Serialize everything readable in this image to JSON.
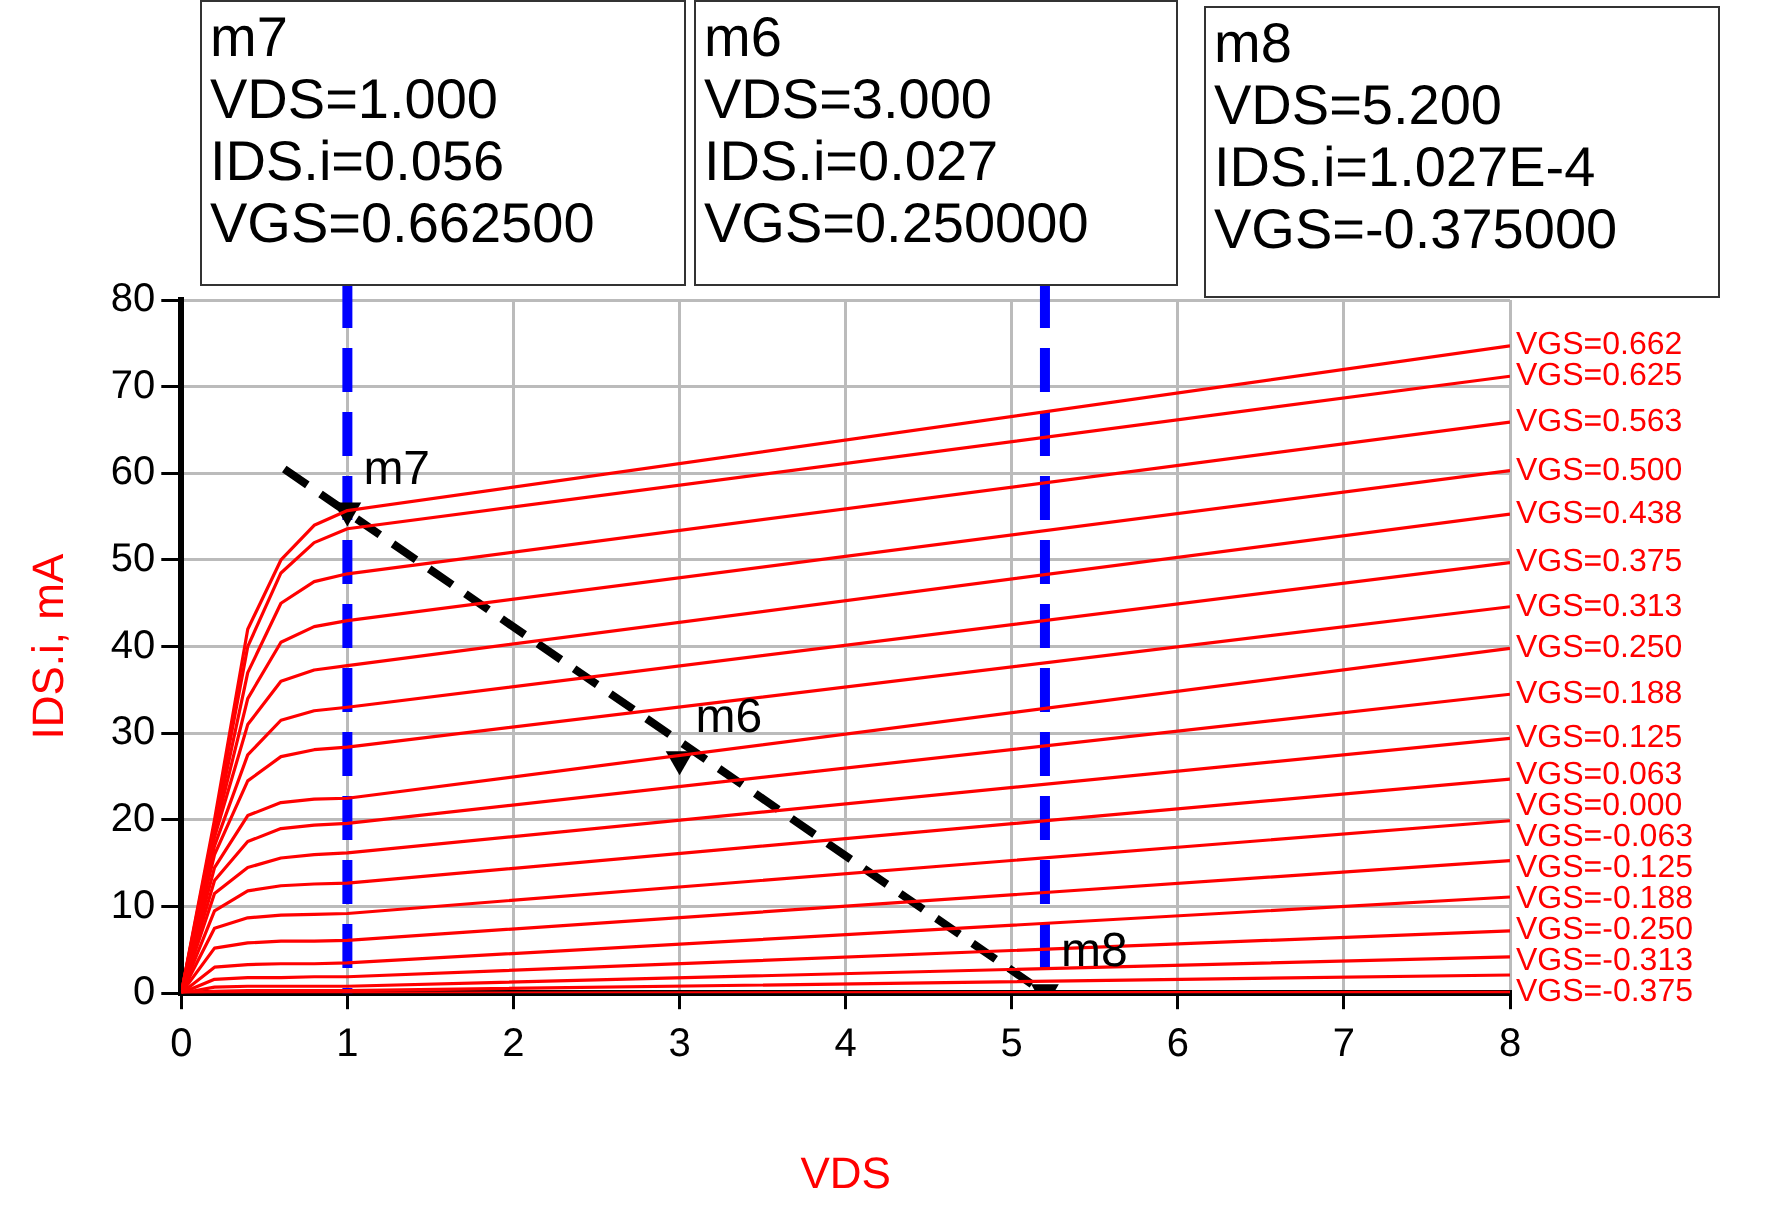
{
  "chart_data": {
    "type": "line",
    "xlabel": "VDS",
    "ylabel": "IDS.i, mA",
    "xlim": [
      0,
      8
    ],
    "ylim": [
      0,
      80
    ],
    "xticks": [
      0,
      1,
      2,
      3,
      4,
      5,
      6,
      7,
      8
    ],
    "yticks": [
      0,
      10,
      20,
      30,
      40,
      50,
      60,
      70,
      80
    ],
    "grid": true,
    "legend": false,
    "marker": "none",
    "line_style": "solid",
    "x": [
      0,
      0.2,
      0.4,
      0.6,
      0.8,
      1,
      8
    ],
    "series": [
      {
        "name": "VGS=0.662",
        "color": "#ff0000",
        "values": [
          0,
          20,
          42,
          50,
          54,
          55.7,
          74.7
        ]
      },
      {
        "name": "VGS=0.625",
        "color": "#ff0000",
        "values": [
          0,
          19.5,
          40,
          48.5,
          52,
          53.6,
          71.2
        ]
      },
      {
        "name": "VGS=0.563",
        "color": "#ff0000",
        "values": [
          0,
          19,
          37,
          45,
          47.5,
          48.4,
          65.9
        ]
      },
      {
        "name": "VGS=0.500",
        "color": "#ff0000",
        "values": [
          0,
          18.5,
          34,
          40.5,
          42.3,
          43,
          60.3
        ]
      },
      {
        "name": "VGS=0.438",
        "color": "#ff0000",
        "values": [
          0,
          18,
          31,
          36,
          37.3,
          37.8,
          55.3
        ]
      },
      {
        "name": "VGS=0.375",
        "color": "#ff0000",
        "values": [
          0,
          17,
          27.5,
          31.5,
          32.6,
          33,
          49.7
        ]
      },
      {
        "name": "VGS=0.313",
        "color": "#ff0000",
        "values": [
          0,
          16,
          24.5,
          27.3,
          28.1,
          28.4,
          44.6
        ]
      },
      {
        "name": "VGS=0.250",
        "color": "#ff0000",
        "values": [
          0,
          14.5,
          20.5,
          22,
          22.4,
          22.5,
          39.8
        ]
      },
      {
        "name": "VGS=0.188",
        "color": "#ff0000",
        "values": [
          0,
          13,
          17.5,
          19,
          19.4,
          19.6,
          34.5
        ]
      },
      {
        "name": "VGS=0.125",
        "color": "#ff0000",
        "values": [
          0,
          11.5,
          14.5,
          15.6,
          16,
          16.2,
          29.4
        ]
      },
      {
        "name": "VGS=0.063",
        "color": "#ff0000",
        "values": [
          0,
          9.5,
          11.8,
          12.4,
          12.6,
          12.7,
          24.7
        ]
      },
      {
        "name": "VGS=0.000",
        "color": "#ff0000",
        "values": [
          0,
          7.5,
          8.7,
          9,
          9.1,
          9.2,
          19.9
        ]
      },
      {
        "name": "VGS=-0.063",
        "color": "#ff0000",
        "values": [
          0,
          5.2,
          5.8,
          6,
          6,
          6.1,
          15.3
        ]
      },
      {
        "name": "VGS=-0.125",
        "color": "#ff0000",
        "values": [
          0,
          3,
          3.3,
          3.4,
          3.4,
          3.5,
          11.1
        ]
      },
      {
        "name": "VGS=-0.188",
        "color": "#ff0000",
        "values": [
          0,
          1.6,
          1.8,
          1.8,
          1.9,
          1.9,
          7.2
        ]
      },
      {
        "name": "VGS=-0.250",
        "color": "#ff0000",
        "values": [
          0,
          0.7,
          0.8,
          0.8,
          0.8,
          0.8,
          4.2
        ]
      },
      {
        "name": "VGS=-0.313",
        "color": "#ff0000",
        "values": [
          0,
          0.2,
          0.3,
          0.3,
          0.3,
          0.3,
          2.1
        ]
      },
      {
        "name": "VGS=-0.375",
        "color": "#ff0000",
        "values": [
          0,
          0,
          0,
          0,
          0,
          0,
          0.1
        ]
      },
      {
        "type": "line",
        "color": "#000000",
        "line_style": "dashed",
        "x": [
          0.62,
          5.2
        ],
        "values": [
          60.5,
          0
        ]
      },
      {
        "type": "scatter",
        "color": "#000000",
        "marker": "triangle",
        "x": [
          1,
          3,
          5.2
        ],
        "values": [
          55.7,
          27,
          0.1
        ]
      }
    ],
    "ref_lines": [
      {
        "axis": "x",
        "value": 1,
        "color": "#0000ff",
        "line_style": "dashed"
      },
      {
        "axis": "x",
        "value": 5.2,
        "color": "#0000ff",
        "line_style": "dashed"
      }
    ],
    "annotations": [
      "m7\nVDS=1.000\nIDS.i=0.056\nVGS=0.662500",
      "m6\nVDS=3.000\nIDS.i=0.027\nVGS=0.250000",
      "m8\nVDS=5.200\nIDS.i=1.027E-4\nVGS=-0.375000",
      {
        "text": "m7",
        "x": 1,
        "y": 55.7
      },
      {
        "text": "m6",
        "x": 3,
        "y": 27
      },
      {
        "text": "m8",
        "x": 5.2,
        "y": 0.1
      }
    ]
  }
}
